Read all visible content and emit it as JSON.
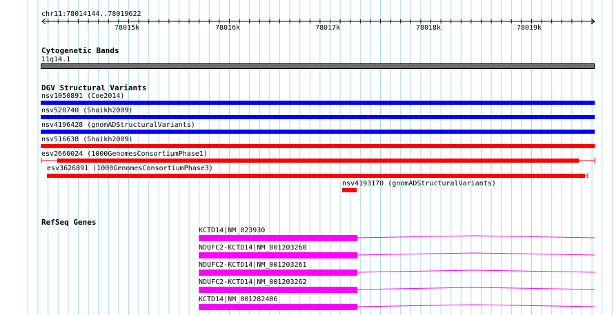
{
  "ruler": {
    "range_label": "chr11:78014144..78019622",
    "ticks": [
      "78015k",
      "78016k",
      "78017k",
      "78018k",
      "78019k"
    ]
  },
  "cytoband": {
    "title": "Cytogenetic Bands",
    "band": "11q14.1",
    "band_color": "#6e6e6e"
  },
  "dgv": {
    "title": "DGV Structural Variants",
    "features": [
      {
        "label": "nsv1050891 (Coe2014)",
        "color": "#0000ff"
      },
      {
        "label": "nsv520740 (Shaikh2009)",
        "color": "#0000ff"
      },
      {
        "label": "nsv4196428 (gnomADStructuralVariants)",
        "color": "#0000ff"
      },
      {
        "label": "nsv516638 (Shaikh2009)",
        "color": "#ff0000"
      },
      {
        "label": "esv2660024 (1000GenomesConsortiumPhase1)",
        "color": "#ff0000"
      },
      {
        "label": "esv3626891 (1000GenomesConsortiumPhase3)",
        "color": "#ff0000"
      },
      {
        "label": "nsv4193170 (gnomADStructuralVariants)",
        "color": "#ff0000"
      }
    ]
  },
  "refseq": {
    "title": "RefSeq Genes",
    "color": "#ff00ff",
    "genes": [
      {
        "label": "KCTD14|NM_023930"
      },
      {
        "label": "NDUFC2-KCTD14|NM_001203260"
      },
      {
        "label": "NDUFC2-KCTD14|NM_001203261"
      },
      {
        "label": "NDUFC2-KCTD14|NM_001203262"
      },
      {
        "label": "KCTD14|NM_001282406"
      }
    ]
  }
}
